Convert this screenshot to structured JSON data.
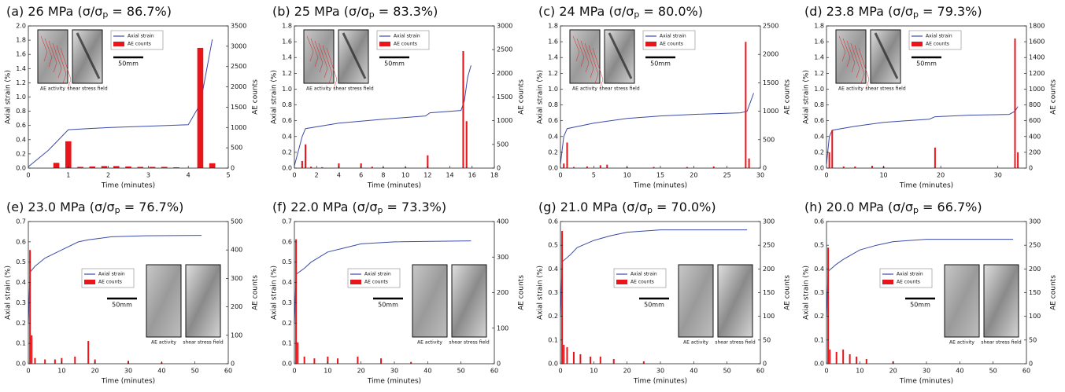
{
  "chart_data": [
    {
      "type": "combo",
      "title": {
        "prefix": "(a) 26 MPa (σ/σ",
        "sub": "p",
        "suffix": " = 86.7%)"
      },
      "xlabel": "Time (minutes)",
      "ylabel": "Axial strain (%)",
      "y2label": "AE counts",
      "xlim": [
        0,
        5
      ],
      "xticks": [
        0,
        1,
        2,
        3,
        4,
        5
      ],
      "ylim": [
        0,
        2
      ],
      "yticks": [
        {
          "value": 0,
          "label": "0.0"
        },
        0.2,
        0.4,
        0.6,
        0.8,
        {
          "value": 1,
          "label": "1.0"
        },
        1.2,
        1.4,
        1.6,
        1.8,
        {
          "value": 2,
          "label": "2.0"
        }
      ],
      "y2lim": [
        0,
        3500
      ],
      "y2ticks": [
        0,
        500,
        1000,
        1500,
        2000,
        2500,
        3000,
        3500
      ],
      "legend": "upper center",
      "inset": {
        "left_label": "AE activity",
        "right_label": "shear stress field",
        "scale": "50mm"
      },
      "series": [
        {
          "name": "Axial strain",
          "type": "line",
          "color": "#3b4ba8",
          "x": [
            0,
            0.5,
            1,
            2,
            3,
            4,
            4.3,
            4.6
          ],
          "values": [
            0.02,
            0.25,
            0.54,
            0.57,
            0.59,
            0.61,
            0.9,
            1.81
          ]
        },
        {
          "name": "AE counts",
          "type": "bar",
          "axis": "y2",
          "color": "#e8161b",
          "x": [
            0.7,
            1,
            1.3,
            1.6,
            1.9,
            2.2,
            2.5,
            2.8,
            3.1,
            3.4,
            3.7,
            4.3,
            4.6
          ],
          "values": [
            130,
            660,
            30,
            40,
            50,
            50,
            40,
            30,
            30,
            30,
            20,
            2960,
            120
          ]
        }
      ]
    },
    {
      "type": "combo",
      "title": {
        "prefix": "(b) 25 MPa (σ/σ",
        "sub": "p",
        "suffix": " = 83.3%)"
      },
      "xlabel": "Time (minutes)",
      "ylabel": "Axial strain (%)",
      "y2label": "AE counts",
      "xlim": [
        0,
        18
      ],
      "xticks": [
        0,
        2,
        4,
        6,
        8,
        10,
        12,
        14,
        16,
        18
      ],
      "ylim": [
        0,
        1.8
      ],
      "yticks": [
        {
          "value": 0,
          "label": "0.0"
        },
        0.2,
        0.4,
        0.6,
        0.8,
        {
          "value": 1,
          "label": "1.0"
        },
        1.2,
        1.4,
        1.6,
        1.8
      ],
      "y2lim": [
        0,
        3000
      ],
      "y2ticks": [
        0,
        500,
        1000,
        1500,
        2000,
        2500,
        3000
      ],
      "legend": "upper center",
      "inset": {
        "left_label": "AE activity",
        "right_label": "shear stress field",
        "scale": "50mm"
      },
      "series": [
        {
          "name": "Axial strain",
          "type": "line",
          "color": "#3b4ba8",
          "x": [
            0,
            0.7,
            1,
            4,
            8,
            11.8,
            12.2,
            15,
            15.3,
            15.6,
            15.9
          ],
          "values": [
            0.03,
            0.4,
            0.5,
            0.57,
            0.62,
            0.66,
            0.7,
            0.73,
            0.85,
            1.15,
            1.3
          ]
        },
        {
          "name": "AE counts",
          "type": "bar",
          "axis": "y2",
          "color": "#e8161b",
          "x": [
            0.7,
            1,
            1.5,
            2.5,
            4,
            6,
            7,
            8,
            10,
            12,
            15.2,
            15.5
          ],
          "values": [
            150,
            500,
            30,
            20,
            100,
            100,
            30,
            20,
            20,
            270,
            2470,
            990
          ]
        }
      ]
    },
    {
      "type": "combo",
      "title": {
        "prefix": "(c) 24 MPa (σ/σ",
        "sub": "p",
        "suffix": " = 80.0%)"
      },
      "xlabel": "Time (minutes)",
      "ylabel": "Axial strain (%)",
      "y2label": "AE counts",
      "xlim": [
        0,
        30
      ],
      "xticks": [
        0,
        5,
        10,
        15,
        20,
        25,
        30
      ],
      "ylim": [
        0,
        1.8
      ],
      "yticks": [
        {
          "value": 0,
          "label": "0.0"
        },
        0.2,
        0.4,
        0.6,
        0.8,
        {
          "value": 1,
          "label": "1.0"
        },
        1.2,
        1.4,
        1.6,
        1.8
      ],
      "y2lim": [
        0,
        2500
      ],
      "y2ticks": [
        0,
        500,
        1000,
        1500,
        2000,
        2500
      ],
      "legend": "upper center",
      "inset": {
        "left_label": "AE activity",
        "right_label": "shear stress field",
        "scale": "50mm"
      },
      "series": [
        {
          "name": "Axial strain",
          "type": "line",
          "color": "#3b4ba8",
          "x": [
            0,
            0.5,
            1,
            5,
            10,
            15,
            20,
            27,
            28,
            29
          ],
          "values": [
            0.05,
            0.4,
            0.5,
            0.57,
            0.63,
            0.66,
            0.68,
            0.7,
            0.72,
            0.95
          ]
        },
        {
          "name": "AE counts",
          "type": "bar",
          "axis": "y2",
          "color": "#e8161b",
          "x": [
            0.5,
            1,
            2,
            4,
            6,
            7,
            10,
            14,
            19,
            23,
            27.8,
            28.3
          ],
          "values": [
            80,
            450,
            20,
            30,
            50,
            60,
            20,
            20,
            20,
            30,
            2220,
            170
          ]
        }
      ]
    },
    {
      "type": "combo",
      "title": {
        "prefix": "(d) 23.8 MPa (σ/σ",
        "sub": "p",
        "suffix": " = 79.3%)"
      },
      "xlabel": "Time (minutes)",
      "ylabel": "Axial strain (%)",
      "y2label": "AE counts",
      "xlim": [
        0,
        35
      ],
      "xticks": [
        0,
        10,
        20,
        30
      ],
      "ylim": [
        0,
        1.8
      ],
      "yticks": [
        {
          "value": 0,
          "label": "0.0"
        },
        0.2,
        0.4,
        0.6,
        0.8,
        {
          "value": 1,
          "label": "1.0"
        },
        1.2,
        1.4,
        1.6,
        1.8
      ],
      "y2lim": [
        0,
        1800
      ],
      "y2ticks": [
        0,
        200,
        400,
        600,
        800,
        1000,
        1200,
        1400,
        1600,
        1800
      ],
      "legend": "upper center",
      "inset": {
        "left_label": "AE activity",
        "right_label": "shear stress field",
        "scale": "50mm"
      },
      "series": [
        {
          "name": "Axial strain",
          "type": "line",
          "color": "#3b4ba8",
          "x": [
            0,
            0.5,
            1,
            5,
            10,
            18,
            19,
            25,
            32,
            33,
            33.5
          ],
          "values": [
            0.05,
            0.4,
            0.48,
            0.53,
            0.58,
            0.62,
            0.65,
            0.67,
            0.68,
            0.72,
            0.78
          ]
        },
        {
          "name": "AE counts",
          "type": "bar",
          "axis": "y2",
          "color": "#e8161b",
          "x": [
            0.5,
            1,
            3,
            5,
            8,
            10,
            19,
            33,
            33.5
          ],
          "values": [
            200,
            480,
            20,
            20,
            30,
            20,
            260,
            1640,
            200
          ]
        }
      ]
    },
    {
      "type": "combo",
      "title": {
        "prefix": "(e) 23.0 MPa (σ/σ",
        "sub": "p",
        "suffix": " = 76.7%)"
      },
      "xlabel": "Time (minutes)",
      "ylabel": "Axial strain (%)",
      "y2label": "AE counts",
      "xlim": [
        0,
        60
      ],
      "xticks": [
        0,
        10,
        20,
        30,
        40,
        50,
        60
      ],
      "ylim": [
        0,
        0.7
      ],
      "yticks": [
        {
          "value": 0,
          "label": "0.0"
        },
        0.1,
        0.2,
        0.3,
        0.4,
        0.5,
        0.6,
        0.7
      ],
      "y2lim": [
        0,
        500
      ],
      "y2ticks": [
        0,
        100,
        200,
        300,
        400,
        500
      ],
      "legend": "center",
      "inset": {
        "left_label": "AE activity",
        "right_label": "shear stress field",
        "scale": "50mm"
      },
      "series": [
        {
          "name": "Axial strain",
          "type": "line",
          "color": "#3b4ba8",
          "x": [
            0,
            0.5,
            2,
            5,
            10,
            15,
            18,
            25,
            35,
            52
          ],
          "values": [
            0.2,
            0.45,
            0.48,
            0.52,
            0.56,
            0.6,
            0.61,
            0.625,
            0.63,
            0.632
          ]
        },
        {
          "name": "AE counts",
          "type": "bar",
          "axis": "y2",
          "color": "#e8161b",
          "x": [
            0.5,
            1,
            2,
            5,
            8,
            10,
            14,
            18,
            20,
            30,
            40
          ],
          "values": [
            400,
            100,
            20,
            15,
            15,
            20,
            25,
            80,
            15,
            10,
            5
          ]
        }
      ]
    },
    {
      "type": "combo",
      "title": {
        "prefix": "(f) 22.0 MPa (σ/σ",
        "sub": "p",
        "suffix": " = 73.3%)"
      },
      "xlabel": "Time (minutes)",
      "ylabel": "Axial strain (%)",
      "y2label": "AE counts",
      "xlim": [
        0,
        60
      ],
      "xticks": [
        0,
        10,
        20,
        30,
        40,
        50,
        60
      ],
      "ylim": [
        0,
        0.7
      ],
      "yticks": [
        {
          "value": 0,
          "label": "0.0"
        },
        0.1,
        0.2,
        0.3,
        0.4,
        0.5,
        0.6,
        0.7
      ],
      "y2lim": [
        0,
        400
      ],
      "y2ticks": [
        0,
        100,
        200,
        300,
        400
      ],
      "legend": "center",
      "inset": {
        "left_label": "AE activity",
        "right_label": "shear stress field",
        "scale": "50mm"
      },
      "series": [
        {
          "name": "Axial strain",
          "type": "line",
          "color": "#3b4ba8",
          "x": [
            0,
            0.5,
            3,
            5,
            10,
            15,
            20,
            30,
            53
          ],
          "values": [
            0.2,
            0.44,
            0.47,
            0.5,
            0.55,
            0.57,
            0.59,
            0.6,
            0.605
          ]
        },
        {
          "name": "AE counts",
          "type": "bar",
          "axis": "y2",
          "color": "#e8161b",
          "x": [
            0.5,
            1,
            3,
            6,
            10,
            13,
            19,
            26,
            35
          ],
          "values": [
            350,
            60,
            20,
            15,
            20,
            15,
            20,
            15,
            5
          ]
        }
      ]
    },
    {
      "type": "combo",
      "title": {
        "prefix": "(g) 21.0 MPa (σ/σ",
        "sub": "p",
        "suffix": " = 70.0%)"
      },
      "xlabel": "Time (minutes)",
      "ylabel": "Axial strain (%)",
      "y2label": "AE counts",
      "xlim": [
        0,
        60
      ],
      "xticks": [
        0,
        10,
        20,
        30,
        40,
        50,
        60
      ],
      "ylim": [
        0,
        0.6
      ],
      "yticks": [
        {
          "value": 0,
          "label": "0.0"
        },
        0.1,
        0.2,
        0.3,
        0.4,
        0.5,
        0.6
      ],
      "y2lim": [
        0,
        300
      ],
      "y2ticks": [
        0,
        50,
        100,
        150,
        200,
        250,
        300
      ],
      "legend": "center",
      "inset": {
        "left_label": "AE activity",
        "right_label": "shear stress field",
        "scale": "50mm"
      },
      "series": [
        {
          "name": "Axial strain",
          "type": "line",
          "color": "#3b4ba8",
          "x": [
            0,
            0.5,
            3,
            5,
            10,
            15,
            20,
            30,
            56
          ],
          "values": [
            0.2,
            0.43,
            0.46,
            0.49,
            0.52,
            0.54,
            0.555,
            0.565,
            0.565
          ]
        },
        {
          "name": "AE counts",
          "type": "bar",
          "axis": "y2",
          "color": "#e8161b",
          "x": [
            0.5,
            1,
            2,
            4,
            6,
            9,
            12,
            16,
            25
          ],
          "values": [
            280,
            40,
            35,
            25,
            20,
            15,
            15,
            10,
            5
          ]
        }
      ]
    },
    {
      "type": "combo",
      "title": {
        "prefix": "(h) 20.0 MPa (σ/σ",
        "sub": "p",
        "suffix": " = 66.7%)"
      },
      "xlabel": "Time (minutes)",
      "ylabel": "Axial strain (%)",
      "y2label": "AE counts",
      "xlim": [
        0,
        60
      ],
      "xticks": [
        0,
        10,
        20,
        30,
        40,
        50,
        60
      ],
      "ylim": [
        0,
        0.6
      ],
      "yticks": [
        {
          "value": 0,
          "label": "0.0"
        },
        0.1,
        0.2,
        0.3,
        0.4,
        0.5,
        0.6
      ],
      "y2lim": [
        0,
        300
      ],
      "y2ticks": [
        0,
        50,
        100,
        150,
        200,
        250,
        300
      ],
      "legend": "center",
      "inset": {
        "left_label": "AE activity",
        "right_label": "shear stress field",
        "scale": "50mm"
      },
      "series": [
        {
          "name": "Axial strain",
          "type": "line",
          "color": "#3b4ba8",
          "x": [
            0,
            0.5,
            3,
            5,
            10,
            15,
            20,
            30,
            56
          ],
          "values": [
            0.2,
            0.39,
            0.42,
            0.44,
            0.48,
            0.5,
            0.515,
            0.525,
            0.525
          ]
        },
        {
          "name": "AE counts",
          "type": "bar",
          "axis": "y2",
          "color": "#e8161b",
          "x": [
            0.5,
            1,
            3,
            5,
            7,
            9,
            12,
            20
          ],
          "values": [
            245,
            30,
            25,
            30,
            20,
            15,
            10,
            5
          ]
        }
      ]
    }
  ]
}
